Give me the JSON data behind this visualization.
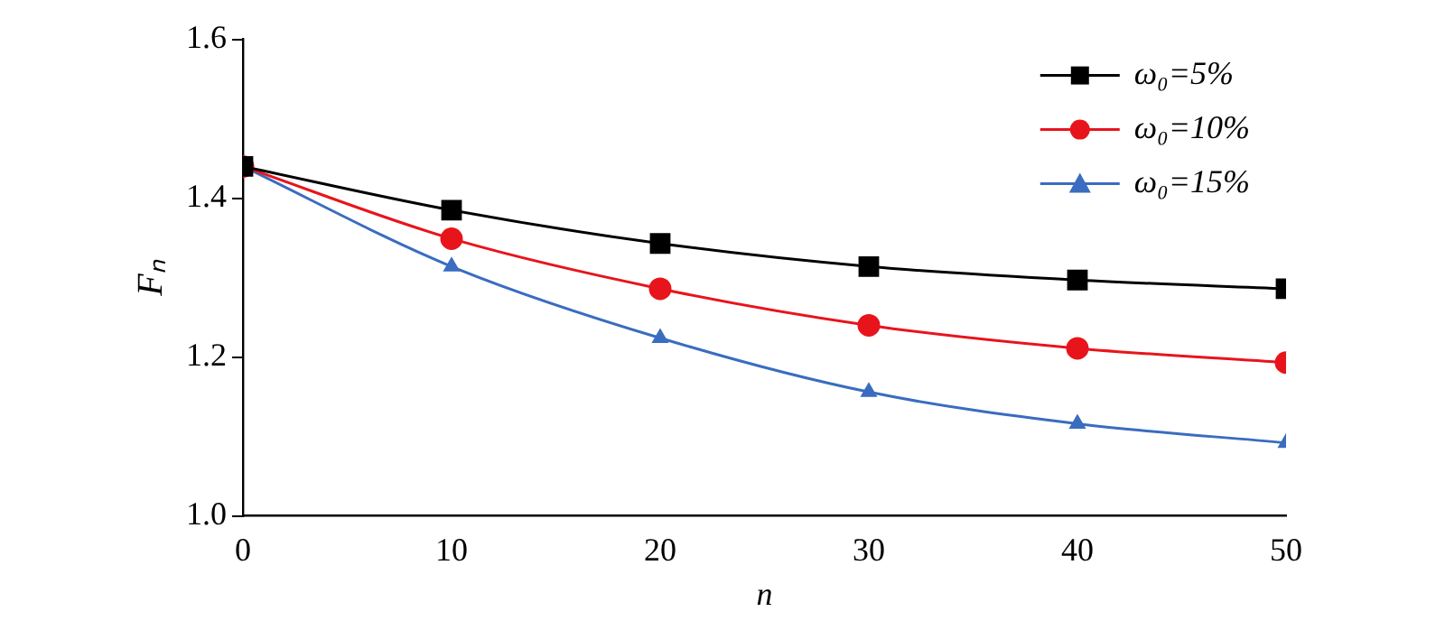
{
  "chart_data": {
    "type": "line",
    "xlabel": "n",
    "ylabel": "Fₙ",
    "x": [
      0,
      10,
      20,
      30,
      40,
      50
    ],
    "xlim": [
      0,
      50
    ],
    "xticks": [
      0,
      10,
      20,
      30,
      40,
      50
    ],
    "ylim": [
      1.0,
      1.6
    ],
    "yticks": [
      {
        "value": 1.0,
        "label": "1.0"
      },
      {
        "value": 1.2,
        "label": "1.2"
      },
      {
        "value": 1.4,
        "label": "1.4"
      },
      {
        "value": 1.6,
        "label": "1.6"
      }
    ],
    "grid": false,
    "legend": "top right",
    "series": [
      {
        "name": "ω₀=5%",
        "color": "#000000",
        "marker": "square",
        "values": [
          1.44,
          1.385,
          1.343,
          1.314,
          1.297,
          1.286
        ]
      },
      {
        "name": "ω₀=10%",
        "color": "#e8141c",
        "marker": "circle",
        "values": [
          1.44,
          1.349,
          1.286,
          1.24,
          1.211,
          1.193
        ]
      },
      {
        "name": "ω₀=15%",
        "color": "#3a6cc0",
        "marker": "triangle",
        "values": [
          1.44,
          1.314,
          1.224,
          1.156,
          1.116,
          1.092
        ]
      }
    ]
  }
}
